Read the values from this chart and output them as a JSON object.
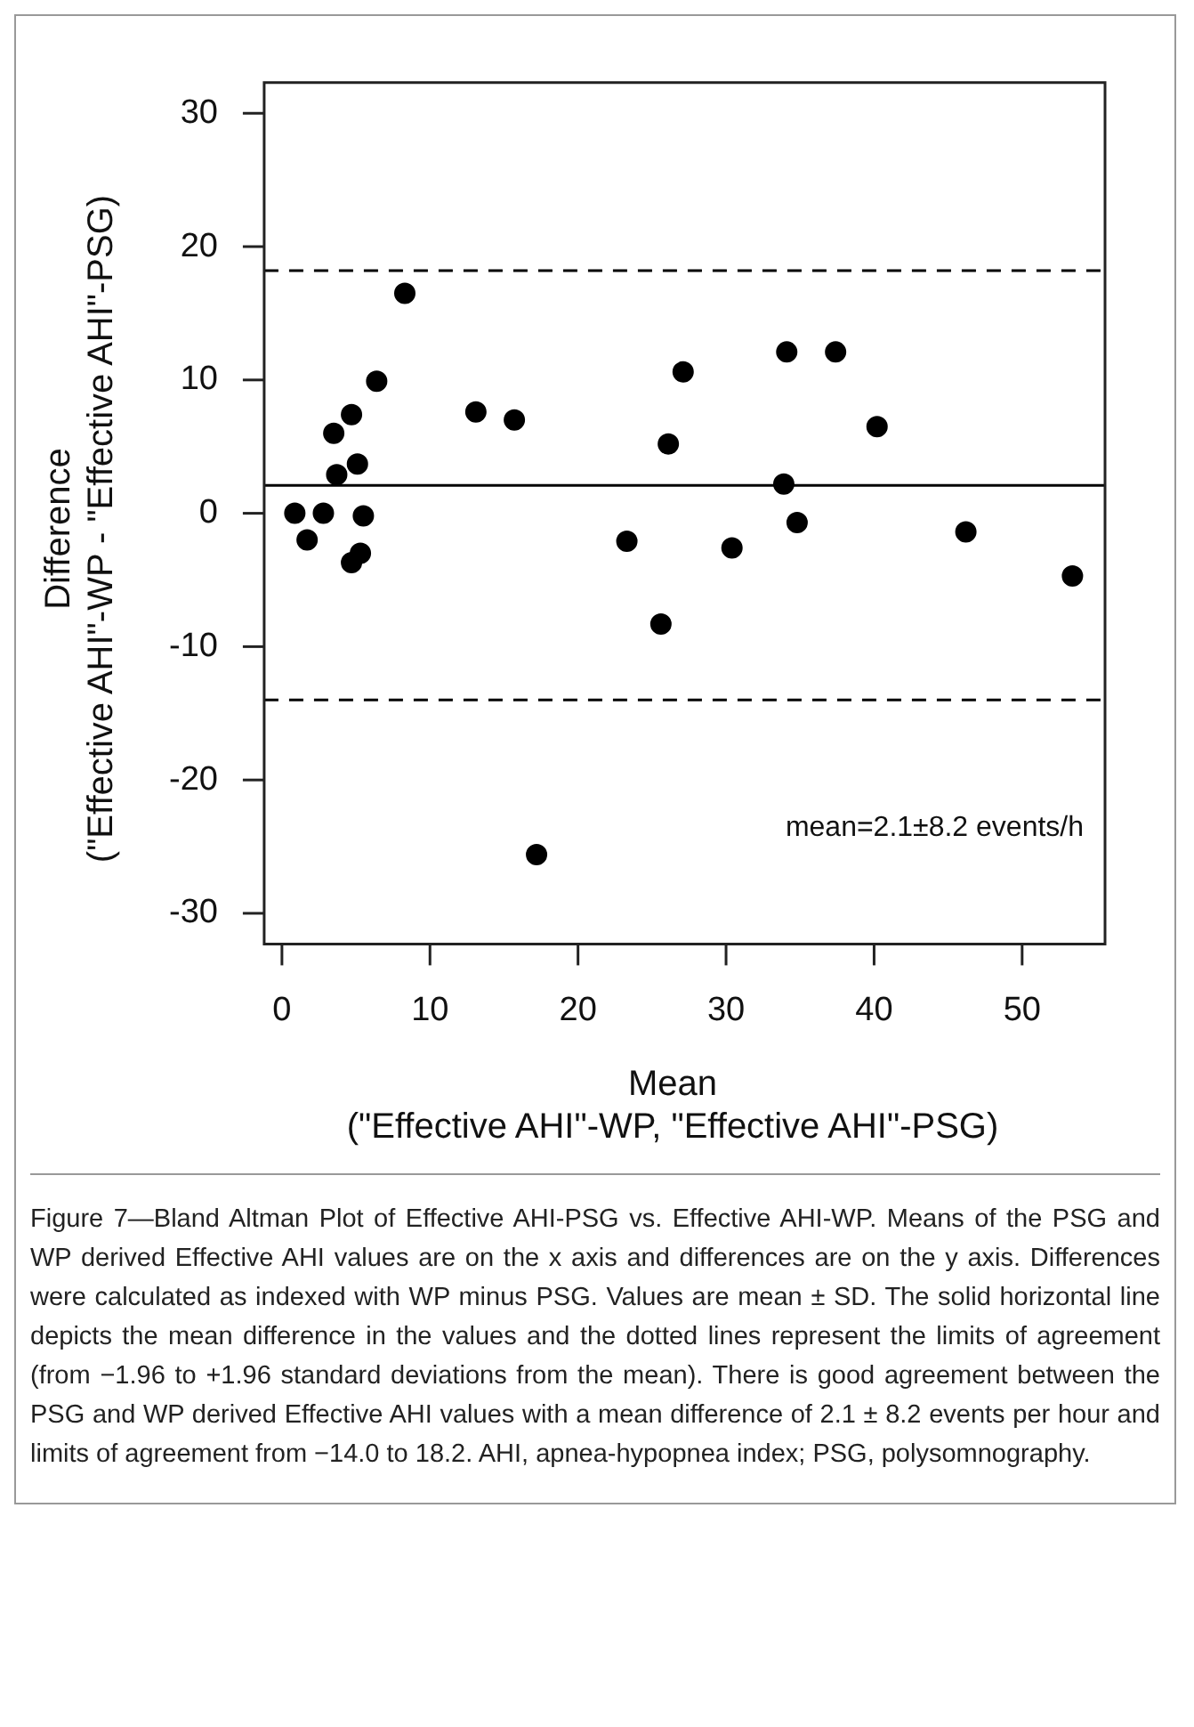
{
  "chart_data": {
    "type": "scatter",
    "xlabel": "Mean\n(\"Effective AHI\"-WP, \"Effective AHI\"-PSG)",
    "ylabel": "Difference\n(\"Effective AHI\"-WP - \"Effective AHI\"-PSG)",
    "x": [
      0.87,
      1.7,
      2.8,
      3.5,
      3.7,
      4.7,
      5.1,
      5.5,
      4.7,
      5.3,
      6.4,
      8.3,
      13.1,
      15.7,
      23.3,
      26.1,
      27.1,
      30.4,
      33.9,
      34.1,
      34.8,
      37.4,
      40.2,
      46.2,
      53.4,
      25.6,
      17.2
    ],
    "series": [
      {
        "color": "#000000",
        "values": [
          0,
          -2.0,
          0,
          6.0,
          2.9,
          7.4,
          3.7,
          -0.2,
          -3.7,
          -3.0,
          9.9,
          16.5,
          7.6,
          7.0,
          -2.1,
          5.2,
          10.6,
          -2.6,
          2.2,
          12.1,
          -0.7,
          12.1,
          6.5,
          -1.4,
          -4.7,
          -8.3,
          -25.6
        ]
      }
    ],
    "marker": "circle",
    "xlim": [
      -1.2,
      55.6
    ],
    "xticks": [
      0,
      10,
      20,
      30,
      40,
      50
    ],
    "ylim": [
      -32.3,
      32.3
    ],
    "yticks": [
      -30,
      -20,
      -10,
      0,
      10,
      20,
      30
    ],
    "grid": false,
    "legend": false,
    "ref_lines": [
      {
        "axis": "y",
        "value": 2.1,
        "line_style": "solid",
        "color": "#000000"
      },
      {
        "axis": "y",
        "value": 18.2,
        "line_style": "dashed",
        "color": "#000000"
      },
      {
        "axis": "y",
        "value": -14.0,
        "line_style": "dashed",
        "color": "#000000"
      }
    ],
    "annotations": [
      "mean=2.1±8.2 events/h",
      "Figure 7—Bland Altman Plot of Effective AHI-PSG vs. Effective AHI-WP. Means of the PSG and WP derived Effective AHI values are on the x axis and differences are on the y axis. Differences were calculated as indexed with WP minus PSG. Values are mean ± SD. The solid horizontal line depicts the mean difference in the values and the dotted lines represent the limits of agreement (from −1.96 to +1.96 standard deviations from the mean). There is good agreement between the PSG and WP derived Effective AHI values with a mean difference of 2.1 ± 8.2 events per hour and limits of agreement from −14.0 to 18.2. AHI, apnea-hypopnea index; PSG, polysomnography."
    ]
  }
}
